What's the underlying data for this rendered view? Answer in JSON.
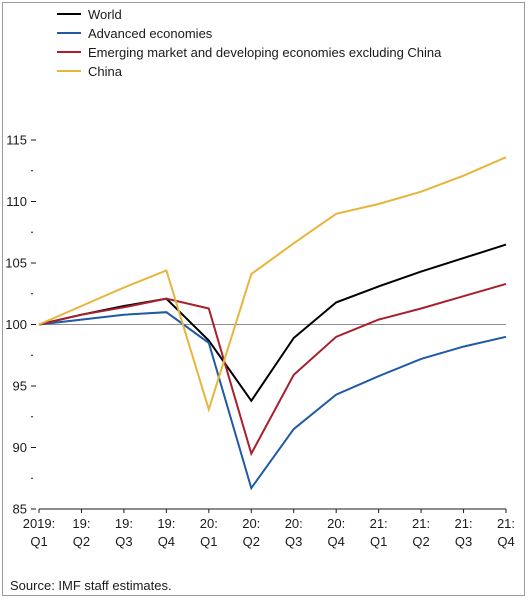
{
  "chart_data": {
    "type": "line",
    "categories": [
      [
        "2019:",
        "Q1"
      ],
      [
        "19:",
        "Q2"
      ],
      [
        "19:",
        "Q3"
      ],
      [
        "19:",
        "Q4"
      ],
      [
        "20:",
        "Q1"
      ],
      [
        "20:",
        "Q2"
      ],
      [
        "20:",
        "Q3"
      ],
      [
        "20:",
        "Q4"
      ],
      [
        "21:",
        "Q1"
      ],
      [
        "21:",
        "Q2"
      ],
      [
        "21:",
        "Q3"
      ],
      [
        "21:",
        "Q4"
      ]
    ],
    "ylim": [
      85,
      115
    ],
    "yticks": [
      85,
      90,
      95,
      100,
      105,
      110,
      115
    ],
    "reference_line": 100,
    "legend_position": "top-left",
    "series": [
      {
        "name": "World",
        "color": "#000000",
        "values": [
          100,
          100.8,
          101.5,
          102.1,
          98.7,
          93.8,
          98.9,
          101.8,
          103.1,
          104.3,
          105.4,
          106.5
        ]
      },
      {
        "name": "Advanced economies",
        "color": "#1f5aa6",
        "values": [
          100,
          100.4,
          100.8,
          101.0,
          98.5,
          86.7,
          91.5,
          94.3,
          95.8,
          97.2,
          98.2,
          99.0
        ]
      },
      {
        "name": "Emerging market and developing economies excluding China",
        "color": "#a8202d",
        "values": [
          100,
          100.8,
          101.4,
          102.1,
          101.3,
          89.5,
          95.9,
          99.0,
          100.4,
          101.3,
          102.3,
          103.3
        ]
      },
      {
        "name": "China",
        "color": "#e8b53b",
        "values": [
          100,
          101.5,
          103.0,
          104.4,
          93.1,
          104.1,
          106.6,
          109.0,
          109.8,
          110.8,
          112.1,
          113.6
        ]
      }
    ]
  },
  "source": "Source: IMF staff estimates."
}
